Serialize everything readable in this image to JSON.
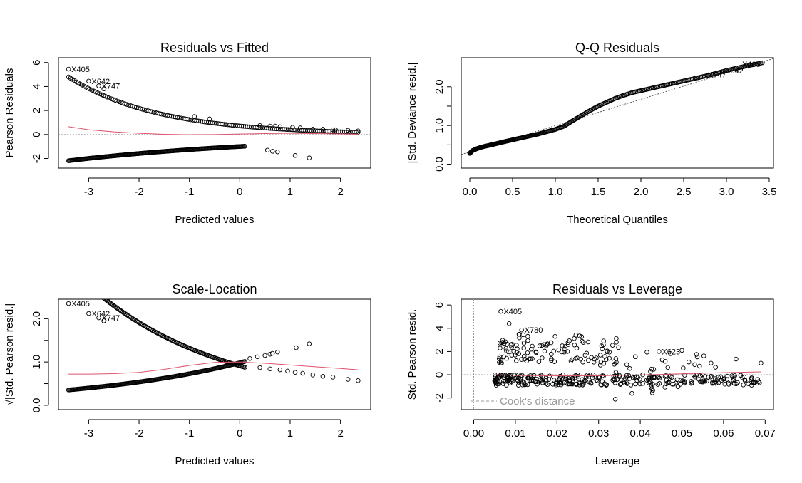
{
  "chart_data": [
    {
      "id": "rvf",
      "type": "scatter",
      "title": "Residuals vs Fitted",
      "xlabel": "Predicted values",
      "ylabel": "Pearson Residuals",
      "xlim": [
        -3.6,
        2.6
      ],
      "ylim": [
        -2.8,
        6.4
      ],
      "xticks": [
        -3,
        -2,
        -1,
        0,
        1,
        2
      ],
      "yticks": [
        -2,
        0,
        2,
        4,
        6
      ],
      "xtick_labels": [
        "-3",
        "-2",
        "-1",
        "0",
        "1",
        "2"
      ],
      "ytick_labels": [
        "-2",
        "0",
        "2",
        "4",
        "6"
      ],
      "ytick_rotated": true,
      "smooth_color": "#df536b",
      "refline": {
        "orientation": "h",
        "value": 0,
        "style": "dotted",
        "color": "#999999"
      },
      "smooth": {
        "x": [
          -3.4,
          -3.0,
          -2.5,
          -2.0,
          -1.5,
          -1.0,
          -0.5,
          0.0,
          0.5,
          1.0,
          1.5,
          2.0,
          2.35
        ],
        "y": [
          0.65,
          0.4,
          0.22,
          0.1,
          0.02,
          -0.02,
          0.0,
          0.04,
          0.08,
          0.1,
          0.08,
          0.05,
          0.03
        ]
      },
      "bands": [
        {
          "x0": -3.4,
          "x1": 2.35,
          "a": 1.0,
          "b": 0.56,
          "c": -0.6,
          "n": 150
        },
        {
          "x0": -3.4,
          "x1": 0.1,
          "a": -1.0,
          "b": 0.23,
          "c": 0.0,
          "n": 220
        }
      ],
      "points": [
        {
          "x": -3.4,
          "y": 5.45
        },
        {
          "x": -3.0,
          "y": 4.45
        },
        {
          "x": -2.8,
          "y": 4.05
        },
        {
          "x": -2.7,
          "y": 3.8
        },
        {
          "x": -0.9,
          "y": 1.5
        },
        {
          "x": -0.6,
          "y": 1.3
        },
        {
          "x": 0.4,
          "y": 0.75
        },
        {
          "x": 0.6,
          "y": 0.7
        },
        {
          "x": 0.7,
          "y": 0.7
        },
        {
          "x": 0.8,
          "y": 0.65
        },
        {
          "x": 1.05,
          "y": 0.6
        },
        {
          "x": 1.2,
          "y": 0.55
        },
        {
          "x": 1.45,
          "y": 0.45
        },
        {
          "x": 1.65,
          "y": 0.45
        },
        {
          "x": 1.85,
          "y": 0.4
        },
        {
          "x": 1.9,
          "y": 0.4
        },
        {
          "x": 2.15,
          "y": 0.35
        },
        {
          "x": 2.35,
          "y": 0.3
        },
        {
          "x": 0.55,
          "y": -1.3
        },
        {
          "x": 0.65,
          "y": -1.4
        },
        {
          "x": 0.75,
          "y": -1.45
        },
        {
          "x": 1.1,
          "y": -1.75
        },
        {
          "x": 1.38,
          "y": -1.95
        }
      ],
      "labels": [
        {
          "x": -3.4,
          "y": 5.45,
          "text": "X405"
        },
        {
          "x": -3.0,
          "y": 4.45,
          "text": "X642"
        },
        {
          "x": -2.8,
          "y": 4.05,
          "text": "X747"
        }
      ]
    },
    {
      "id": "qq",
      "type": "scatter",
      "title": "Q-Q Residuals",
      "xlabel": "Theoretical Quantiles",
      "ylabel": "|Std. Deviance resid.|",
      "xlim": [
        -0.1,
        3.55
      ],
      "ylim": [
        -0.1,
        2.75
      ],
      "xticks": [
        0.0,
        0.5,
        1.0,
        1.5,
        2.0,
        2.5,
        3.0,
        3.5
      ],
      "yticks": [
        0.0,
        0.5,
        1.0,
        1.5,
        2.0
      ],
      "xtick_labels": [
        "0.0",
        "0.5",
        "1.0",
        "1.5",
        "2.0",
        "2.5",
        "3.0",
        "3.5"
      ],
      "ytick_labels": [
        "0.0",
        "",
        "1.0",
        "",
        "2.0"
      ],
      "ytick_rotated": true,
      "refline": {
        "type": "abline",
        "x": [
          -0.1,
          3.55
        ],
        "y": [
          0.25,
          2.73
        ],
        "style": "dotted",
        "color": "#555555"
      },
      "curve": {
        "x": [
          0.0,
          0.03,
          0.08,
          0.15,
          0.25,
          0.4,
          0.6,
          0.8,
          1.0,
          1.1,
          1.15,
          1.2,
          1.3,
          1.4,
          1.5,
          1.6,
          1.7,
          1.8,
          1.9,
          2.0,
          2.2,
          2.4,
          2.6,
          2.8,
          3.0,
          3.2,
          3.42
        ],
        "y": [
          0.28,
          0.35,
          0.4,
          0.45,
          0.5,
          0.58,
          0.68,
          0.78,
          0.9,
          0.98,
          1.05,
          1.12,
          1.25,
          1.38,
          1.5,
          1.6,
          1.7,
          1.78,
          1.85,
          1.9,
          2.0,
          2.1,
          2.2,
          2.3,
          2.42,
          2.52,
          2.62
        ]
      },
      "curve_n": 320,
      "labels": [
        {
          "x": 2.75,
          "y": 2.32,
          "text": "X747"
        },
        {
          "x": 2.95,
          "y": 2.42,
          "text": "X642"
        },
        {
          "x": 3.15,
          "y": 2.58,
          "text": "X405"
        }
      ]
    },
    {
      "id": "sl",
      "type": "scatter",
      "title": "Scale-Location",
      "xlabel": "Predicted values",
      "ylabel": "√|Std. Pearson resid.|",
      "xlim": [
        -3.6,
        2.6
      ],
      "ylim": [
        -0.1,
        2.45
      ],
      "xticks": [
        -3,
        -2,
        -1,
        0,
        1,
        2
      ],
      "yticks": [
        0.0,
        0.5,
        1.0,
        1.5,
        2.0
      ],
      "xtick_labels": [
        "-3",
        "-2",
        "-1",
        "0",
        "1",
        "2"
      ],
      "ytick_labels": [
        "0.0",
        "",
        "1.0",
        "",
        "2.0"
      ],
      "ytick_rotated": true,
      "smooth_color": "#df536b",
      "smooth": {
        "x": [
          -3.4,
          -3.0,
          -2.5,
          -2.0,
          -1.5,
          -1.0,
          -0.5,
          0.0,
          0.5,
          1.0,
          1.5,
          2.0,
          2.35
        ],
        "y": [
          0.72,
          0.72,
          0.73,
          0.76,
          0.83,
          0.92,
          0.99,
          1.0,
          0.97,
          0.93,
          0.89,
          0.85,
          0.82
        ]
      },
      "bands": [
        {
          "x0": -3.4,
          "x1": 0.1,
          "a": 1.0,
          "b": 0.37,
          "c": -0.25,
          "n": 160
        },
        {
          "x0": -3.4,
          "x1": 0.1,
          "a": 1.0,
          "b": -0.3,
          "c": 0.06,
          "n": 200
        }
      ],
      "points": [
        {
          "x": -3.4,
          "y": 2.35
        },
        {
          "x": -3.0,
          "y": 2.12
        },
        {
          "x": -2.8,
          "y": 2.02
        },
        {
          "x": -2.7,
          "y": 1.95
        },
        {
          "x": 0.4,
          "y": 0.87
        },
        {
          "x": 0.6,
          "y": 0.84
        },
        {
          "x": 0.8,
          "y": 0.82
        },
        {
          "x": 0.95,
          "y": 0.79
        },
        {
          "x": 1.1,
          "y": 0.76
        },
        {
          "x": 1.25,
          "y": 0.74
        },
        {
          "x": 1.45,
          "y": 0.7
        },
        {
          "x": 1.65,
          "y": 0.67
        },
        {
          "x": 1.85,
          "y": 0.65
        },
        {
          "x": 2.15,
          "y": 0.6
        },
        {
          "x": 2.35,
          "y": 0.57
        },
        {
          "x": 0.2,
          "y": 1.08
        },
        {
          "x": 0.35,
          "y": 1.12
        },
        {
          "x": 0.5,
          "y": 1.15
        },
        {
          "x": 0.6,
          "y": 1.18
        },
        {
          "x": 0.65,
          "y": 1.2
        },
        {
          "x": 0.75,
          "y": 1.23
        },
        {
          "x": 1.12,
          "y": 1.33
        },
        {
          "x": 1.38,
          "y": 1.42
        }
      ],
      "labels": [
        {
          "x": -3.4,
          "y": 2.35,
          "text": "X405"
        },
        {
          "x": -3.0,
          "y": 2.12,
          "text": "X642"
        },
        {
          "x": -2.8,
          "y": 2.02,
          "text": "X747"
        }
      ]
    },
    {
      "id": "rvl",
      "type": "scatter",
      "title": "Residuals vs Leverage",
      "xlabel": "Leverage",
      "ylabel": "Std. Pearson resid.",
      "xlim": [
        -0.003,
        0.072
      ],
      "ylim": [
        -3.0,
        6.5
      ],
      "xticks": [
        0.0,
        0.01,
        0.02,
        0.03,
        0.04,
        0.05,
        0.06,
        0.07
      ],
      "yticks": [
        -2,
        0,
        2,
        4,
        6
      ],
      "xtick_labels": [
        "0.00",
        "0.01",
        "0.02",
        "0.03",
        "0.04",
        "0.05",
        "0.06",
        "0.07"
      ],
      "ytick_labels": [
        "-2",
        "0",
        "2",
        "4",
        "6"
      ],
      "ytick_rotated": true,
      "smooth_color": "#df536b",
      "refline": {
        "orientation": "h",
        "value": 0,
        "style": "dotted",
        "color": "#999999"
      },
      "vline": {
        "value": 0.0,
        "style": "dotted",
        "color": "#999999"
      },
      "smooth": {
        "x": [
          0.005,
          0.01,
          0.02,
          0.03,
          0.04,
          0.05,
          0.06,
          0.069
        ],
        "y": [
          0.0,
          -0.05,
          -0.1,
          -0.08,
          -0.02,
          0.08,
          0.18,
          0.25
        ]
      },
      "clouds": [
        {
          "x0": 0.005,
          "x1": 0.069,
          "y0": -0.9,
          "y1": 0.0,
          "n": 300,
          "seed": 7
        },
        {
          "x0": 0.006,
          "x1": 0.035,
          "y0": 1.0,
          "y1": 3.5,
          "n": 110,
          "seed": 11
        },
        {
          "x0": 0.03,
          "x1": 0.06,
          "y0": 0.2,
          "y1": 2.0,
          "n": 30,
          "seed": 19
        },
        {
          "x0": 0.04,
          "x1": 0.06,
          "y0": -1.6,
          "y1": -0.5,
          "n": 12,
          "seed": 23
        }
      ],
      "points": [
        {
          "x": 0.0065,
          "y": 5.45
        },
        {
          "x": 0.0085,
          "y": 4.4
        },
        {
          "x": 0.0115,
          "y": 3.85
        },
        {
          "x": 0.0445,
          "y": 2.0
        },
        {
          "x": 0.05,
          "y": 2.1
        },
        {
          "x": 0.057,
          "y": 1.0
        },
        {
          "x": 0.063,
          "y": 1.35
        },
        {
          "x": 0.069,
          "y": 1.0
        },
        {
          "x": 0.058,
          "y": -0.6
        },
        {
          "x": 0.034,
          "y": -2.1
        },
        {
          "x": 0.038,
          "y": -1.6
        }
      ],
      "labels": [
        {
          "x": 0.0065,
          "y": 5.45,
          "text": "X405"
        },
        {
          "x": 0.0115,
          "y": 3.85,
          "text": "X780"
        },
        {
          "x": 0.0445,
          "y": 2.0,
          "text": "X623"
        }
      ],
      "legend_text": "Cook's distance",
      "legend_color": "#9a9a9a",
      "legend_placement": "bottom-left"
    }
  ]
}
